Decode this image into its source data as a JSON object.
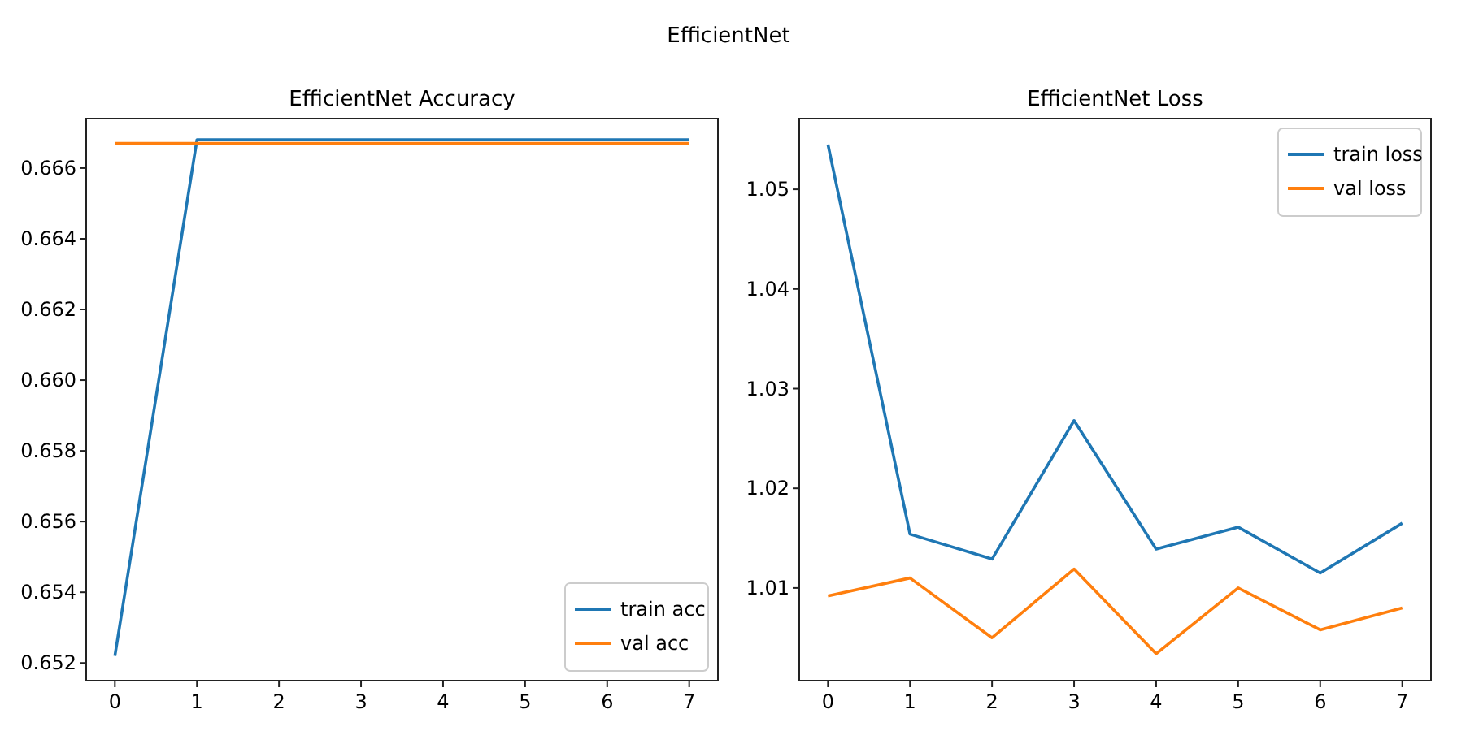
{
  "chart_data": [
    {
      "type": "line",
      "title": "EfficientNet Accuracy",
      "annotations": [
        "EfficientNet"
      ],
      "x": [
        0,
        1,
        2,
        3,
        4,
        5,
        6,
        7
      ],
      "series": [
        {
          "name": "train acc",
          "color": "#1f77b4",
          "values": [
            0.6522,
            0.6668,
            0.6668,
            0.6668,
            0.6668,
            0.6668,
            0.6668,
            0.6668
          ]
        },
        {
          "name": "val acc",
          "color": "#ff7f0e",
          "values": [
            0.6667,
            0.6667,
            0.6667,
            0.6667,
            0.6667,
            0.6667,
            0.6667,
            0.6667
          ]
        }
      ],
      "xlim": [
        -0.35,
        7.35
      ],
      "xticks": [
        0,
        1,
        2,
        3,
        4,
        5,
        6,
        7
      ],
      "ylim": [
        0.6515,
        0.6674
      ],
      "yticks": [
        0.652,
        0.654,
        0.656,
        0.658,
        {
          "value": 0.66,
          "label": "0.660"
        },
        0.662,
        0.664,
        0.666
      ],
      "legend": "bottom right",
      "grid": false
    },
    {
      "type": "line",
      "title": "EfficientNet Loss",
      "x": [
        0,
        1,
        2,
        3,
        4,
        5,
        6,
        7
      ],
      "series": [
        {
          "name": "train loss",
          "color": "#1f77b4",
          "values": [
            1.0545,
            1.0154,
            1.0129,
            1.0268,
            1.0139,
            1.0161,
            1.0115,
            1.0165
          ]
        },
        {
          "name": "val loss",
          "color": "#ff7f0e",
          "values": [
            1.0092,
            1.011,
            1.005,
            1.0119,
            1.0034,
            1.01,
            1.0058,
            1.008
          ]
        }
      ],
      "xlim": [
        -0.35,
        7.35
      ],
      "xticks": [
        0,
        1,
        2,
        3,
        4,
        5,
        6,
        7
      ],
      "ylim": [
        1.0007,
        1.0571
      ],
      "yticks": [
        1.01,
        1.02,
        1.03,
        1.04,
        1.05
      ],
      "legend": "top right",
      "grid": false
    }
  ]
}
